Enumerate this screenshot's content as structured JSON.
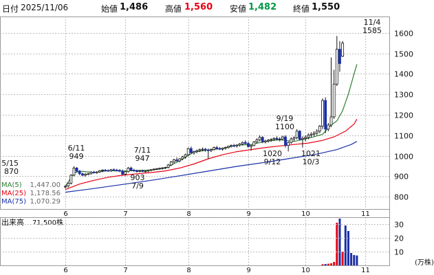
{
  "header": {
    "date_label": "日付",
    "date": "2025/11/06",
    "open_label": "始値",
    "open": "1,486",
    "high_label": "高値",
    "high": "1,560",
    "low_label": "安値",
    "low": "1,482",
    "close_label": "終値",
    "close": "1,550",
    "colors": {
      "high": "#e60012",
      "low": "#009944",
      "text": "#111111"
    }
  },
  "chart_data": [
    {
      "type": "candlestick",
      "ylim": [
        740,
        1680
      ],
      "yticks": [
        800,
        900,
        1000,
        1100,
        1200,
        1300,
        1400,
        1500,
        1600
      ],
      "xticks": [
        {
          "label": "6",
          "idx": 0
        },
        {
          "label": "7",
          "idx": 21
        },
        {
          "label": "8",
          "idx": 43
        },
        {
          "label": "9",
          "idx": 64
        },
        {
          "label": "10",
          "idx": 84
        },
        {
          "label": "11",
          "idx": 105
        }
      ],
      "num_days": 110,
      "candles": [
        {
          "o": 848,
          "h": 855,
          "l": 840,
          "c": 851
        },
        {
          "o": 852,
          "h": 870,
          "l": 845,
          "c": 866
        },
        {
          "o": 866,
          "h": 910,
          "l": 860,
          "c": 905
        },
        {
          "o": 905,
          "h": 949,
          "l": 900,
          "c": 940
        },
        {
          "o": 940,
          "h": 945,
          "l": 920,
          "c": 925
        },
        {
          "o": 925,
          "h": 930,
          "l": 905,
          "c": 912
        },
        {
          "o": 912,
          "h": 918,
          "l": 900,
          "c": 905
        },
        {
          "o": 905,
          "h": 915,
          "l": 898,
          "c": 910
        },
        {
          "o": 910,
          "h": 916,
          "l": 905,
          "c": 912
        },
        {
          "o": 912,
          "h": 925,
          "l": 908,
          "c": 920
        },
        {
          "o": 920,
          "h": 926,
          "l": 913,
          "c": 918
        },
        {
          "o": 918,
          "h": 924,
          "l": 912,
          "c": 921
        },
        {
          "o": 921,
          "h": 930,
          "l": 916,
          "c": 927
        },
        {
          "o": 927,
          "h": 934,
          "l": 920,
          "c": 930
        },
        {
          "o": 930,
          "h": 935,
          "l": 924,
          "c": 928
        },
        {
          "o": 928,
          "h": 933,
          "l": 922,
          "c": 926
        },
        {
          "o": 926,
          "h": 935,
          "l": 921,
          "c": 932
        },
        {
          "o": 932,
          "h": 938,
          "l": 926,
          "c": 930
        },
        {
          "o": 930,
          "h": 936,
          "l": 925,
          "c": 929
        },
        {
          "o": 929,
          "h": 934,
          "l": 920,
          "c": 925
        },
        {
          "o": 925,
          "h": 933,
          "l": 905,
          "c": 910
        },
        {
          "o": 910,
          "h": 925,
          "l": 903,
          "c": 922
        },
        {
          "o": 922,
          "h": 945,
          "l": 918,
          "c": 940
        },
        {
          "o": 940,
          "h": 947,
          "l": 925,
          "c": 930
        },
        {
          "o": 930,
          "h": 936,
          "l": 922,
          "c": 926
        },
        {
          "o": 926,
          "h": 932,
          "l": 918,
          "c": 924
        },
        {
          "o": 924,
          "h": 930,
          "l": 919,
          "c": 927
        },
        {
          "o": 927,
          "h": 932,
          "l": 920,
          "c": 923
        },
        {
          "o": 923,
          "h": 928,
          "l": 918,
          "c": 925
        },
        {
          "o": 925,
          "h": 932,
          "l": 920,
          "c": 929
        },
        {
          "o": 929,
          "h": 935,
          "l": 924,
          "c": 932
        },
        {
          "o": 932,
          "h": 938,
          "l": 927,
          "c": 935
        },
        {
          "o": 935,
          "h": 940,
          "l": 930,
          "c": 937
        },
        {
          "o": 937,
          "h": 942,
          "l": 931,
          "c": 939
        },
        {
          "o": 939,
          "h": 944,
          "l": 933,
          "c": 941
        },
        {
          "o": 941,
          "h": 946,
          "l": 935,
          "c": 943
        },
        {
          "o": 943,
          "h": 960,
          "l": 938,
          "c": 955
        },
        {
          "o": 955,
          "h": 975,
          "l": 950,
          "c": 970
        },
        {
          "o": 970,
          "h": 985,
          "l": 962,
          "c": 980
        },
        {
          "o": 980,
          "h": 992,
          "l": 970,
          "c": 975
        },
        {
          "o": 975,
          "h": 988,
          "l": 968,
          "c": 985
        },
        {
          "o": 985,
          "h": 1000,
          "l": 978,
          "c": 995
        },
        {
          "o": 995,
          "h": 1010,
          "l": 985,
          "c": 1005
        },
        {
          "o": 1005,
          "h": 1040,
          "l": 1000,
          "c": 1035
        },
        {
          "o": 1035,
          "h": 1045,
          "l": 1010,
          "c": 1015
        },
        {
          "o": 1015,
          "h": 1025,
          "l": 1005,
          "c": 1020
        },
        {
          "o": 1020,
          "h": 1030,
          "l": 1012,
          "c": 1025
        },
        {
          "o": 1025,
          "h": 1035,
          "l": 1018,
          "c": 1030
        },
        {
          "o": 1030,
          "h": 1040,
          "l": 1022,
          "c": 1032
        },
        {
          "o": 1032,
          "h": 1038,
          "l": 1020,
          "c": 1028
        },
        {
          "o": 1028,
          "h": 1035,
          "l": 985,
          "c": 1025
        },
        {
          "o": 1025,
          "h": 1036,
          "l": 1018,
          "c": 1030
        },
        {
          "o": 1030,
          "h": 1045,
          "l": 1025,
          "c": 1040
        },
        {
          "o": 1040,
          "h": 1048,
          "l": 1030,
          "c": 1035
        },
        {
          "o": 1035,
          "h": 1042,
          "l": 1028,
          "c": 1032
        },
        {
          "o": 1032,
          "h": 1040,
          "l": 1025,
          "c": 1036
        },
        {
          "o": 1036,
          "h": 1045,
          "l": 1030,
          "c": 1040
        },
        {
          "o": 1040,
          "h": 1050,
          "l": 1035,
          "c": 1046
        },
        {
          "o": 1046,
          "h": 1055,
          "l": 1040,
          "c": 1050
        },
        {
          "o": 1050,
          "h": 1058,
          "l": 1042,
          "c": 1048
        },
        {
          "o": 1048,
          "h": 1056,
          "l": 1040,
          "c": 1052
        },
        {
          "o": 1052,
          "h": 1062,
          "l": 1045,
          "c": 1058
        },
        {
          "o": 1058,
          "h": 1070,
          "l": 1050,
          "c": 1065
        },
        {
          "o": 1065,
          "h": 1075,
          "l": 1055,
          "c": 1060
        },
        {
          "o": 1060,
          "h": 1068,
          "l": 1040,
          "c": 1045
        },
        {
          "o": 1045,
          "h": 1055,
          "l": 1025,
          "c": 1050
        },
        {
          "o": 1050,
          "h": 1072,
          "l": 1046,
          "c": 1068
        },
        {
          "o": 1068,
          "h": 1085,
          "l": 1060,
          "c": 1078
        },
        {
          "o": 1078,
          "h": 1100,
          "l": 1070,
          "c": 1090
        },
        {
          "o": 1090,
          "h": 1095,
          "l": 1062,
          "c": 1068
        },
        {
          "o": 1068,
          "h": 1078,
          "l": 1060,
          "c": 1072
        },
        {
          "o": 1072,
          "h": 1082,
          "l": 1064,
          "c": 1076
        },
        {
          "o": 1076,
          "h": 1085,
          "l": 1068,
          "c": 1080
        },
        {
          "o": 1080,
          "h": 1090,
          "l": 1072,
          "c": 1085
        },
        {
          "o": 1085,
          "h": 1095,
          "l": 1075,
          "c": 1080
        },
        {
          "o": 1080,
          "h": 1090,
          "l": 1070,
          "c": 1082
        },
        {
          "o": 1082,
          "h": 1098,
          "l": 1076,
          "c": 1092
        },
        {
          "o": 1092,
          "h": 1100,
          "l": 1040,
          "c": 1050
        },
        {
          "o": 1050,
          "h": 1070,
          "l": 1021,
          "c": 1065
        },
        {
          "o": 1065,
          "h": 1090,
          "l": 1058,
          "c": 1082
        },
        {
          "o": 1082,
          "h": 1095,
          "l": 1070,
          "c": 1088
        },
        {
          "o": 1088,
          "h": 1130,
          "l": 1080,
          "c": 1120
        },
        {
          "o": 1120,
          "h": 1125,
          "l": 1075,
          "c": 1080
        },
        {
          "o": 1080,
          "h": 1095,
          "l": 1040,
          "c": 1085
        },
        {
          "o": 1085,
          "h": 1100,
          "l": 1070,
          "c": 1090
        },
        {
          "o": 1090,
          "h": 1110,
          "l": 1080,
          "c": 1100
        },
        {
          "o": 1100,
          "h": 1115,
          "l": 1090,
          "c": 1105
        },
        {
          "o": 1105,
          "h": 1120,
          "l": 1095,
          "c": 1110
        },
        {
          "o": 1110,
          "h": 1130,
          "l": 1100,
          "c": 1120
        },
        {
          "o": 1120,
          "h": 1150,
          "l": 1110,
          "c": 1145
        },
        {
          "o": 1145,
          "h": 1280,
          "l": 1130,
          "c": 1270
        },
        {
          "o": 1270,
          "h": 1285,
          "l": 1110,
          "c": 1130
        },
        {
          "o": 1130,
          "h": 1160,
          "l": 1120,
          "c": 1150
        },
        {
          "o": 1150,
          "h": 1480,
          "l": 1140,
          "c": 1190
        },
        {
          "o": 1190,
          "h": 1420,
          "l": 1180,
          "c": 1350
        },
        {
          "o": 1350,
          "h": 1585,
          "l": 1340,
          "c": 1520
        },
        {
          "o": 1520,
          "h": 1560,
          "l": 1410,
          "c": 1450
        },
        {
          "o": 1486,
          "h": 1560,
          "l": 1482,
          "c": 1550
        }
      ],
      "ma": [
        {
          "label": "MA(5)",
          "value": "1,447.00",
          "color": "#2e7d32",
          "points": [
            [
              0,
              850
            ],
            [
              3,
              915
            ],
            [
              5,
              925
            ],
            [
              10,
              918
            ],
            [
              15,
              927
            ],
            [
              20,
              925
            ],
            [
              25,
              928
            ],
            [
              30,
              930
            ],
            [
              35,
              940
            ],
            [
              40,
              975
            ],
            [
              45,
              1018
            ],
            [
              50,
              1028
            ],
            [
              55,
              1036
            ],
            [
              60,
              1052
            ],
            [
              65,
              1055
            ],
            [
              70,
              1070
            ],
            [
              75,
              1078
            ],
            [
              80,
              1070
            ],
            [
              85,
              1085
            ],
            [
              90,
              1105
            ],
            [
              93,
              1150
            ],
            [
              95,
              1170
            ],
            [
              97,
              1220
            ],
            [
              99,
              1300
            ],
            [
              101,
              1400
            ],
            [
              102,
              1447
            ]
          ]
        },
        {
          "label": "MA(25)",
          "value": "1,178.56",
          "color": "#e60012",
          "points": [
            [
              0,
              835
            ],
            [
              5,
              862
            ],
            [
              10,
              880
            ],
            [
              15,
              895
            ],
            [
              20,
              905
            ],
            [
              25,
              912
            ],
            [
              30,
              918
            ],
            [
              35,
              926
            ],
            [
              40,
              940
            ],
            [
              45,
              960
            ],
            [
              50,
              985
            ],
            [
              55,
              1005
            ],
            [
              60,
              1020
            ],
            [
              65,
              1030
            ],
            [
              70,
              1040
            ],
            [
              75,
              1048
            ],
            [
              80,
              1055
            ],
            [
              85,
              1062
            ],
            [
              90,
              1075
            ],
            [
              94,
              1092
            ],
            [
              98,
              1120
            ],
            [
              101,
              1155
            ],
            [
              102,
              1179
            ]
          ]
        },
        {
          "label": "MA(75)",
          "value": "1,070.29",
          "color": "#1a2ea8",
          "points": [
            [
              0,
              822
            ],
            [
              10,
              840
            ],
            [
              20,
              860
            ],
            [
              30,
              880
            ],
            [
              40,
              902
            ],
            [
              50,
              925
            ],
            [
              60,
              948
            ],
            [
              70,
              968
            ],
            [
              80,
              990
            ],
            [
              88,
              1008
            ],
            [
              95,
              1030
            ],
            [
              100,
              1055
            ],
            [
              102,
              1070
            ]
          ]
        }
      ],
      "annotations": [
        {
          "label": "5/15",
          "value": "870",
          "pos": "above"
        },
        {
          "label": "6/11",
          "value": "949",
          "pos": "above"
        },
        {
          "label": "7/11",
          "value": "947",
          "pos": "above"
        },
        {
          "label": "7/9",
          "value": "903",
          "pos": "below"
        },
        {
          "label": "9/19",
          "value": "1100",
          "pos": "above"
        },
        {
          "label": "9/12",
          "value": "1020",
          "pos": "below"
        },
        {
          "label": "10/3",
          "value": "1021",
          "pos": "below"
        },
        {
          "label": "11/4",
          "value": "1585",
          "pos": "above"
        }
      ]
    },
    {
      "type": "bar",
      "label": "出来高",
      "value": "71,500株",
      "unit": "(万株)",
      "ylim": [
        0,
        35
      ],
      "yticks": [
        10,
        20,
        30
      ],
      "series": [
        {
          "idx": 90,
          "v": 0.8
        },
        {
          "idx": 91,
          "v": 1.0
        },
        {
          "idx": 92,
          "v": 1.2
        },
        {
          "idx": 93,
          "v": 1.5
        },
        {
          "idx": 94,
          "v": 2.5
        },
        {
          "idx": 95,
          "v": 31
        },
        {
          "idx": 96,
          "v": 34
        },
        {
          "idx": 97,
          "v": 10
        },
        {
          "idx": 98,
          "v": 29
        },
        {
          "idx": 99,
          "v": 25
        },
        {
          "idx": 100,
          "v": 9
        },
        {
          "idx": 101,
          "v": 7.5
        },
        {
          "idx": 102,
          "v": 7.2
        }
      ]
    }
  ]
}
